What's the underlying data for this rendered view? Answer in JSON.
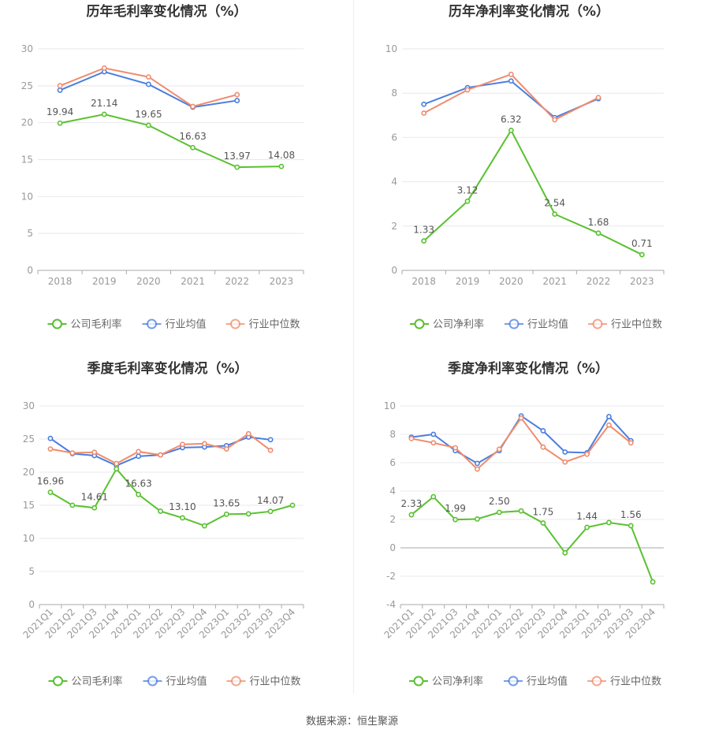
{
  "colors": {
    "company": "#5ac130",
    "industry_avg": "#4a7ee0",
    "industry_median": "#f08c6c",
    "axis_text": "#999999",
    "grid": "#e8e8ef",
    "title": "#333333",
    "label": "#555555"
  },
  "legend_icon": "circle-line-icon",
  "source": "数据来源：恒生聚源",
  "chart_data": [
    {
      "type": "line",
      "title": "历年毛利率变化情况（%）",
      "categories": [
        "2018",
        "2019",
        "2020",
        "2021",
        "2022",
        "2023"
      ],
      "ylim": [
        0,
        30
      ],
      "yticks": [
        0,
        5,
        10,
        15,
        20,
        25,
        30
      ],
      "grid": true,
      "legend_position": "bottom",
      "series": [
        {
          "name": "公司毛利率",
          "key": "company",
          "values": [
            19.94,
            21.14,
            19.65,
            16.63,
            13.97,
            14.08
          ],
          "labels": [
            "19.94",
            "21.14",
            "19.65",
            "16.63",
            "13.97",
            "14.08"
          ]
        },
        {
          "name": "行业均值",
          "key": "industry_avg",
          "values": [
            24.4,
            26.9,
            25.2,
            22.1,
            23.0,
            null
          ]
        },
        {
          "name": "行业中位数",
          "key": "industry_median",
          "values": [
            25.0,
            27.4,
            26.2,
            22.2,
            23.8,
            null
          ]
        }
      ]
    },
    {
      "type": "line",
      "title": "历年净利率变化情况（%）",
      "categories": [
        "2018",
        "2019",
        "2020",
        "2021",
        "2022",
        "2023"
      ],
      "ylim": [
        0,
        10
      ],
      "yticks": [
        0,
        2,
        4,
        6,
        8,
        10
      ],
      "grid": true,
      "legend_position": "bottom",
      "series": [
        {
          "name": "公司净利率",
          "key": "company",
          "values": [
            1.33,
            3.12,
            6.32,
            2.54,
            1.68,
            0.71
          ],
          "labels": [
            "1.33",
            "3.12",
            "6.32",
            "2.54",
            "1.68",
            "0.71"
          ]
        },
        {
          "name": "行业均值",
          "key": "industry_avg",
          "values": [
            7.5,
            8.25,
            8.55,
            6.9,
            7.75,
            null
          ]
        },
        {
          "name": "行业中位数",
          "key": "industry_median",
          "values": [
            7.1,
            8.15,
            8.85,
            6.8,
            7.8,
            null
          ]
        }
      ]
    },
    {
      "type": "line",
      "title": "季度毛利率变化情况（%）",
      "categories": [
        "2021Q1",
        "2021Q2",
        "2021Q3",
        "2021Q4",
        "2022Q1",
        "2022Q2",
        "2022Q3",
        "2022Q4",
        "2023Q1",
        "2023Q2",
        "2023Q3",
        "2023Q4"
      ],
      "ylim": [
        0,
        30
      ],
      "yticks": [
        0,
        5,
        10,
        15,
        20,
        25,
        30
      ],
      "grid": true,
      "rotated_xticks": true,
      "legend_position": "bottom",
      "series": [
        {
          "name": "公司毛利率",
          "key": "company",
          "values": [
            16.96,
            15.0,
            14.61,
            20.5,
            16.63,
            14.1,
            13.1,
            11.9,
            13.65,
            13.7,
            14.07,
            15.0
          ],
          "labels": [
            "16.96",
            "",
            "14.61",
            "",
            "16.63",
            "",
            "13.10",
            "",
            "13.65",
            "",
            "14.07",
            ""
          ]
        },
        {
          "name": "行业均值",
          "key": "industry_avg",
          "values": [
            25.1,
            22.8,
            22.5,
            21.0,
            22.4,
            22.6,
            23.7,
            23.8,
            24.0,
            25.3,
            24.9,
            null
          ]
        },
        {
          "name": "行业中位数",
          "key": "industry_median",
          "values": [
            23.5,
            22.9,
            23.0,
            21.3,
            23.1,
            22.6,
            24.2,
            24.3,
            23.5,
            25.8,
            23.3,
            null
          ]
        }
      ]
    },
    {
      "type": "line",
      "title": "季度净利率变化情况（%）",
      "categories": [
        "2021Q1",
        "2021Q2",
        "2021Q3",
        "2021Q4",
        "2022Q1",
        "2022Q2",
        "2022Q3",
        "2022Q4",
        "2023Q1",
        "2023Q2",
        "2023Q3",
        "2023Q4"
      ],
      "ylim": [
        -4,
        10
      ],
      "yticks": [
        -4,
        -2,
        0,
        2,
        4,
        6,
        8,
        10
      ],
      "grid": true,
      "rotated_xticks": true,
      "legend_position": "bottom",
      "series": [
        {
          "name": "公司净利率",
          "key": "company",
          "values": [
            2.33,
            3.6,
            1.99,
            2.03,
            2.5,
            2.6,
            1.75,
            -0.35,
            1.44,
            1.78,
            1.56,
            -2.4
          ],
          "labels": [
            "2.33",
            "",
            "1.99",
            "",
            "2.50",
            "",
            "1.75",
            "",
            "1.44",
            "",
            "1.56",
            ""
          ]
        },
        {
          "name": "行业均值",
          "key": "industry_avg",
          "values": [
            7.8,
            8.0,
            6.85,
            5.95,
            6.85,
            9.3,
            8.25,
            6.75,
            6.7,
            9.25,
            7.55,
            null
          ]
        },
        {
          "name": "行业中位数",
          "key": "industry_median",
          "values": [
            7.7,
            7.4,
            7.05,
            5.55,
            6.95,
            9.15,
            7.1,
            6.05,
            6.6,
            8.65,
            7.4,
            null
          ]
        }
      ]
    }
  ]
}
